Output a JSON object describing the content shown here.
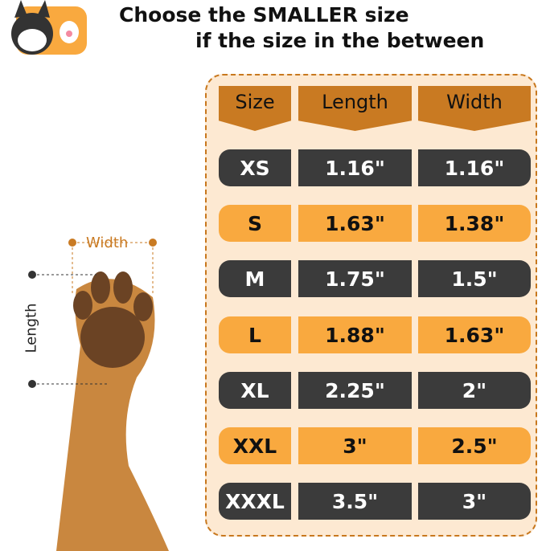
{
  "header": {
    "line1": "Choose the SMALLER size",
    "line2": "if the size in the between"
  },
  "table": {
    "columns": [
      "Size",
      "Length",
      "Width"
    ],
    "rows": [
      [
        "XS",
        "1.16\"",
        "1.16\""
      ],
      [
        "S",
        "1.63\"",
        "1.38\""
      ],
      [
        "M",
        "1.75\"",
        "1.5\""
      ],
      [
        "L",
        "1.88\"",
        "1.63\""
      ],
      [
        "XL",
        "2.25\"",
        "2\""
      ],
      [
        "XXL",
        "3\"",
        "2.5\""
      ],
      [
        "XXXL",
        "3.5\"",
        "3\""
      ]
    ]
  },
  "diagram": {
    "width_label": "Width",
    "length_label": "Length"
  },
  "colors": {
    "header": "#c97a22",
    "dark_row": "#3b3b3b",
    "light_row": "#f9a93f",
    "panel": "#fde9d2"
  }
}
